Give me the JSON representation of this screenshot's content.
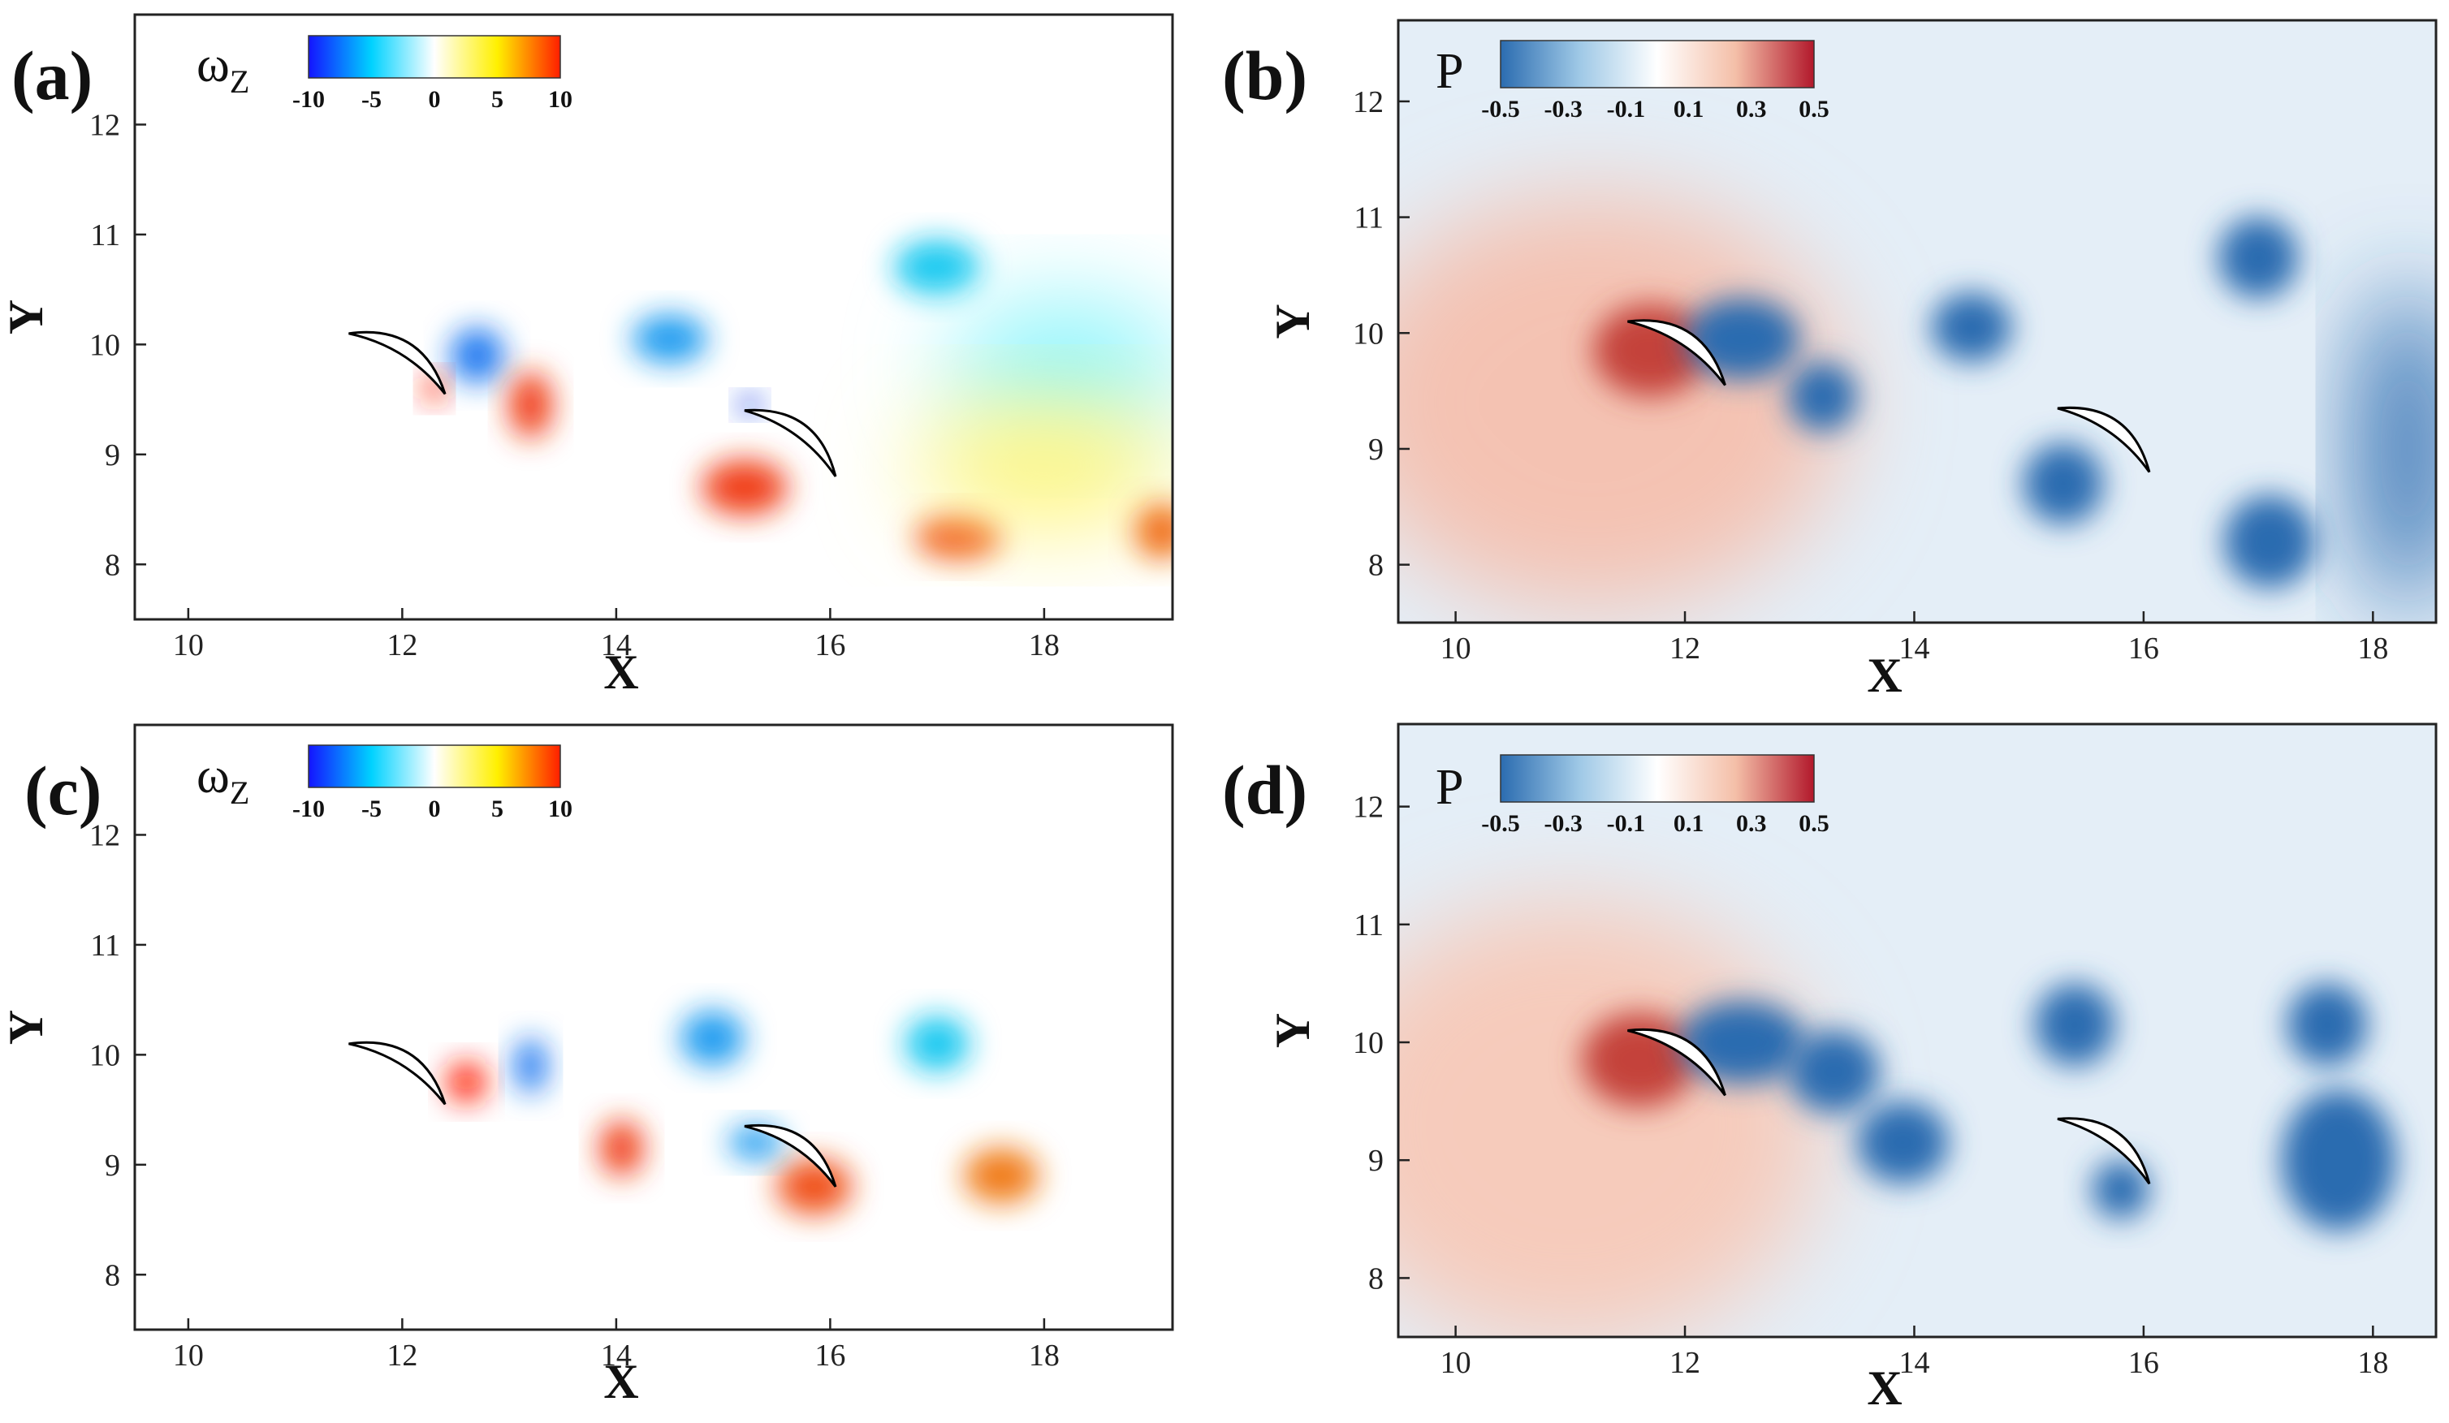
{
  "chart_data": [
    {
      "panel_label": "(a)",
      "type": "contour",
      "field": "vorticity",
      "xlabel": "X",
      "ylabel": "Y",
      "xlim": [
        9.5,
        19.2
      ],
      "ylim": [
        7.5,
        13.0
      ],
      "xticks": [
        10,
        12,
        14,
        16,
        18
      ],
      "yticks": [
        8,
        9,
        10,
        11,
        12
      ],
      "colorbar": {
        "symbol": "ω",
        "subscript": "Z",
        "tick_labels": [
          "-10",
          "-5",
          "0",
          "5",
          "10"
        ],
        "colors": [
          "#1414ff",
          "#00d2ff",
          "#ffffff",
          "#fff000",
          "#ff1e00"
        ]
      },
      "foils": [
        {
          "lead": [
            11.5,
            10.1
          ],
          "trail": [
            12.4,
            9.55
          ]
        },
        {
          "lead": [
            15.2,
            9.4
          ],
          "trail": [
            16.05,
            8.8
          ]
        }
      ],
      "blobs": [
        {
          "x": 17.0,
          "y": 10.7,
          "rx": 0.4,
          "ry": 0.25,
          "color": "#19c8f0"
        },
        {
          "x": 14.5,
          "y": 10.05,
          "rx": 0.35,
          "ry": 0.22,
          "color": "#1e9bf0"
        },
        {
          "x": 12.7,
          "y": 9.9,
          "rx": 0.25,
          "ry": 0.25,
          "color": "#1e78f0"
        },
        {
          "x": 15.2,
          "y": 8.7,
          "rx": 0.4,
          "ry": 0.25,
          "color": "#f03c14"
        },
        {
          "x": 17.2,
          "y": 8.25,
          "rx": 0.4,
          "ry": 0.2,
          "color": "#f05014"
        },
        {
          "x": 13.2,
          "y": 9.45,
          "rx": 0.2,
          "ry": 0.3,
          "color": "#f03c14"
        },
        {
          "x": 18.2,
          "y": 9.8,
          "rx": 1.1,
          "ry": 0.6,
          "color": "#8ff5fa"
        },
        {
          "x": 18.0,
          "y": 8.9,
          "rx": 1.2,
          "ry": 0.55,
          "color": "#fff57a"
        },
        {
          "x": 19.1,
          "y": 8.3,
          "rx": 0.25,
          "ry": 0.25,
          "color": "#f06e14"
        },
        {
          "x": 12.3,
          "y": 9.6,
          "rx": 0.1,
          "ry": 0.12,
          "color": "#ff2200"
        },
        {
          "x": 15.25,
          "y": 9.45,
          "rx": 0.1,
          "ry": 0.08,
          "color": "#1432e6"
        }
      ]
    },
    {
      "panel_label": "(b)",
      "type": "contour",
      "field": "pressure",
      "xlabel": "X",
      "ylabel": "Y",
      "xlim": [
        9.5,
        18.55
      ],
      "ylim": [
        7.5,
        12.7
      ],
      "xticks": [
        10,
        12,
        14,
        16,
        18
      ],
      "yticks": [
        8,
        9,
        10,
        11,
        12
      ],
      "colorbar": {
        "symbol": "P",
        "subscript": "",
        "tick_labels": [
          "-0.5",
          "-0.3",
          "-0.1",
          "0.1",
          "0.3",
          "0.5"
        ],
        "colors": [
          "#2b6cb0",
          "#9ec8e6",
          "#ffffff",
          "#f4bfa8",
          "#b2182b"
        ]
      },
      "foils": [
        {
          "lead": [
            11.5,
            10.1
          ],
          "trail": [
            12.35,
            9.55
          ]
        },
        {
          "lead": [
            15.25,
            9.35
          ],
          "trail": [
            16.05,
            8.8
          ]
        }
      ],
      "blobs": [
        {
          "x": 11.2,
          "y": 9.4,
          "rx": 2.2,
          "ry": 1.8,
          "color": "#f4c2b2"
        },
        {
          "x": 11.7,
          "y": 9.85,
          "rx": 0.5,
          "ry": 0.4,
          "color": "#c4433a"
        },
        {
          "x": 17.0,
          "y": 10.65,
          "rx": 0.35,
          "ry": 0.35,
          "color": "#2b6cb0"
        },
        {
          "x": 17.1,
          "y": 8.2,
          "rx": 0.4,
          "ry": 0.4,
          "color": "#2b6cb0"
        },
        {
          "x": 15.3,
          "y": 8.7,
          "rx": 0.35,
          "ry": 0.35,
          "color": "#2b6cb0"
        },
        {
          "x": 14.5,
          "y": 10.05,
          "rx": 0.35,
          "ry": 0.3,
          "color": "#2b6cb0"
        },
        {
          "x": 13.2,
          "y": 9.45,
          "rx": 0.3,
          "ry": 0.3,
          "color": "#2b6cb0"
        },
        {
          "x": 12.5,
          "y": 9.95,
          "rx": 0.5,
          "ry": 0.35,
          "color": "#2b6cb0"
        },
        {
          "x": 18.3,
          "y": 9.0,
          "rx": 0.4,
          "ry": 1.4,
          "color": "#2b6cb0"
        }
      ]
    },
    {
      "panel_label": "(c)",
      "type": "contour",
      "field": "vorticity",
      "xlabel": "X",
      "ylabel": "Y",
      "xlim": [
        9.5,
        19.2
      ],
      "ylim": [
        7.5,
        13.0
      ],
      "xticks": [
        10,
        12,
        14,
        16,
        18
      ],
      "yticks": [
        8,
        9,
        10,
        11,
        12
      ],
      "colorbar": {
        "symbol": "ω",
        "subscript": "Z",
        "tick_labels": [
          "-10",
          "-5",
          "0",
          "5",
          "10"
        ],
        "colors": [
          "#1414ff",
          "#00d2ff",
          "#ffffff",
          "#fff000",
          "#ff1e00"
        ]
      },
      "foils": [
        {
          "lead": [
            11.5,
            10.1
          ],
          "trail": [
            12.4,
            9.55
          ]
        },
        {
          "lead": [
            15.2,
            9.35
          ],
          "trail": [
            16.05,
            8.8
          ]
        }
      ],
      "blobs": [
        {
          "x": 12.6,
          "y": 9.75,
          "rx": 0.18,
          "ry": 0.18,
          "color": "#ff1e00"
        },
        {
          "x": 14.05,
          "y": 9.15,
          "rx": 0.2,
          "ry": 0.25,
          "color": "#f03c14"
        },
        {
          "x": 13.2,
          "y": 9.9,
          "rx": 0.15,
          "ry": 0.25,
          "color": "#1e78f0"
        },
        {
          "x": 14.9,
          "y": 10.15,
          "rx": 0.3,
          "ry": 0.25,
          "color": "#1e9bf0"
        },
        {
          "x": 17.0,
          "y": 10.1,
          "rx": 0.3,
          "ry": 0.25,
          "color": "#19c8f0"
        },
        {
          "x": 15.85,
          "y": 8.8,
          "rx": 0.35,
          "ry": 0.25,
          "color": "#f05014"
        },
        {
          "x": 17.6,
          "y": 8.9,
          "rx": 0.35,
          "ry": 0.25,
          "color": "#f07a14"
        },
        {
          "x": 15.3,
          "y": 9.2,
          "rx": 0.25,
          "ry": 0.15,
          "color": "#1e9bf0"
        }
      ]
    },
    {
      "panel_label": "(d)",
      "type": "contour",
      "field": "pressure",
      "xlabel": "X",
      "ylabel": "Y",
      "xlim": [
        9.5,
        18.55
      ],
      "ylim": [
        7.5,
        12.7
      ],
      "xticks": [
        10,
        12,
        14,
        16,
        18
      ],
      "yticks": [
        8,
        9,
        10,
        11,
        12
      ],
      "colorbar": {
        "symbol": "P",
        "subscript": "",
        "tick_labels": [
          "-0.5",
          "-0.3",
          "-0.1",
          "0.1",
          "0.3",
          "0.5"
        ],
        "colors": [
          "#2b6cb0",
          "#9ec8e6",
          "#ffffff",
          "#f4bfa8",
          "#b2182b"
        ]
      },
      "foils": [
        {
          "lead": [
            11.5,
            10.1
          ],
          "trail": [
            12.35,
            9.55
          ]
        },
        {
          "lead": [
            15.25,
            9.35
          ],
          "trail": [
            16.05,
            8.8
          ]
        }
      ],
      "blobs": [
        {
          "x": 11.0,
          "y": 9.3,
          "rx": 2.2,
          "ry": 1.9,
          "color": "#f6cbbb"
        },
        {
          "x": 11.6,
          "y": 9.85,
          "rx": 0.5,
          "ry": 0.4,
          "color": "#c4433a"
        },
        {
          "x": 12.5,
          "y": 10.0,
          "rx": 0.55,
          "ry": 0.35,
          "color": "#2b6cb0"
        },
        {
          "x": 13.3,
          "y": 9.75,
          "rx": 0.4,
          "ry": 0.35,
          "color": "#2b6cb0"
        },
        {
          "x": 13.9,
          "y": 9.15,
          "rx": 0.4,
          "ry": 0.35,
          "color": "#2b6cb0"
        },
        {
          "x": 15.4,
          "y": 10.15,
          "rx": 0.35,
          "ry": 0.35,
          "color": "#2b6cb0"
        },
        {
          "x": 15.8,
          "y": 8.75,
          "rx": 0.25,
          "ry": 0.25,
          "color": "#2b6cb0"
        },
        {
          "x": 17.6,
          "y": 10.15,
          "rx": 0.35,
          "ry": 0.35,
          "color": "#2b6cb0"
        },
        {
          "x": 17.7,
          "y": 9.0,
          "rx": 0.5,
          "ry": 0.6,
          "color": "#2b6cb0"
        }
      ]
    }
  ]
}
